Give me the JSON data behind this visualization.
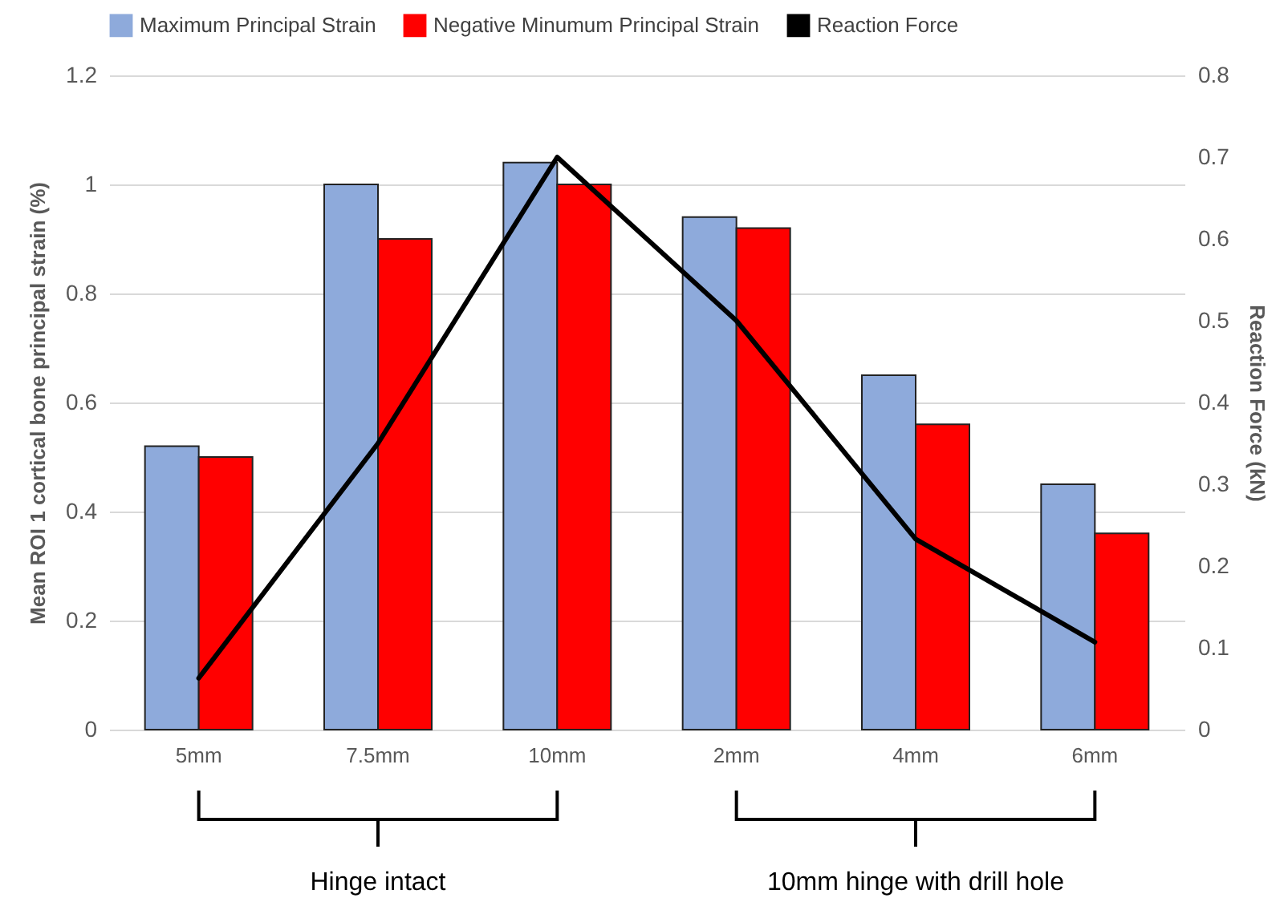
{
  "chart_data": {
    "type": "bar",
    "categories": [
      "5mm",
      "7.5mm",
      "10mm",
      "2mm",
      "4mm",
      "6mm"
    ],
    "ylabel": "Mean ROI 1 cortical bone principal strain (%)",
    "y2label": "Reaction Force (kN)",
    "series": [
      {
        "name": "Maximum Principal Strain",
        "color": "#8eaadb",
        "values": [
          0.52,
          1.0,
          1.04,
          0.94,
          0.65,
          0.45
        ]
      },
      {
        "name": "Negative Minumum Principal Strain",
        "color": "#ff0000",
        "values": [
          0.5,
          0.9,
          1.0,
          0.92,
          0.56,
          0.36
        ]
      },
      {
        "name": "Reaction Force",
        "type": "line",
        "axis": "y2",
        "color": "#000000",
        "values": [
          0.063,
          0.35,
          0.7,
          0.5,
          0.233,
          0.107
        ]
      }
    ],
    "ylim": [
      0,
      1.2
    ],
    "yticks": [
      0,
      0.2,
      0.4,
      0.6,
      0.8,
      1,
      1.2
    ],
    "y2lim": [
      0,
      0.8
    ],
    "y2ticks": [
      0,
      0.1,
      0.2,
      0.3,
      0.4,
      0.5,
      0.6,
      0.7,
      0.8
    ],
    "grid": "y",
    "legend": "top",
    "annotations": [
      "Hinge intact",
      "10mm hinge with drill hole"
    ]
  }
}
